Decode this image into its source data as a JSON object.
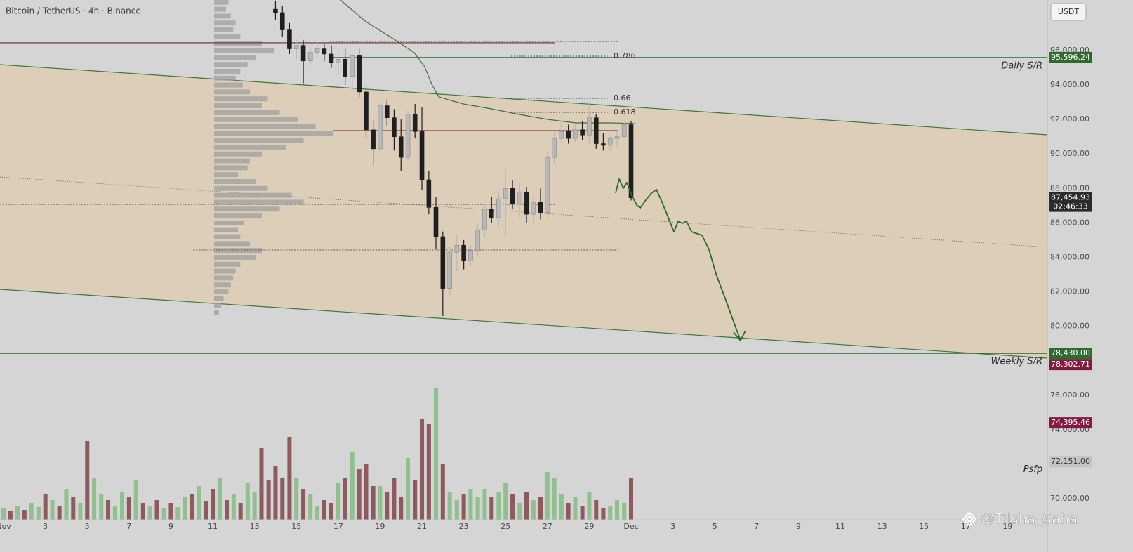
{
  "chart_data": {
    "type": "candlestick",
    "title": "Bitcoin / TetherUS · 4h · Binance",
    "currency_button": "USDT",
    "watermark": "@Trisha_Saha",
    "grid": false,
    "xlim": [
      0.83,
      50.9
    ],
    "xticks": [
      {
        "value": 1,
        "label": "Nov"
      },
      3,
      5,
      7,
      9,
      11,
      13,
      15,
      17,
      19,
      21,
      23,
      25,
      27,
      29,
      {
        "value": 31,
        "label": "Dec"
      },
      {
        "value": 33,
        "label": "3"
      },
      {
        "value": 35,
        "label": "5"
      },
      {
        "value": 37,
        "label": "7"
      },
      {
        "value": 39,
        "label": "9"
      },
      {
        "value": 41,
        "label": "11"
      },
      {
        "value": 43,
        "label": "13"
      },
      {
        "value": 45,
        "label": "15"
      },
      {
        "value": 47,
        "label": "17"
      },
      {
        "value": 49,
        "label": "19"
      }
    ],
    "ylim": [
      68778,
      98934
    ],
    "yticks": [
      {
        "value": 96000,
        "label": "96,000.00"
      },
      {
        "value": 94000,
        "label": "94,000.00"
      },
      {
        "value": 92000,
        "label": "92,000.00"
      },
      {
        "value": 90000,
        "label": "90,000.00"
      },
      {
        "value": 88000,
        "label": "88,000.00"
      },
      {
        "value": 86000,
        "label": "86,000.00"
      },
      {
        "value": 84000,
        "label": "84,000.00"
      },
      {
        "value": 82000,
        "label": "82,000.00"
      },
      {
        "value": 80000,
        "label": "80,000.00"
      },
      {
        "value": 76000,
        "label": "76,000.00"
      },
      {
        "value": 74000,
        "label": "74,000.00"
      },
      {
        "value": 70000,
        "label": "70,000.00"
      }
    ],
    "candles": {
      "up_color": "#b8b8b8",
      "down_color": "#1f1f1f",
      "x": [
        14,
        14.33,
        14.67,
        15,
        15.33,
        15.67,
        16,
        16.33,
        16.67,
        17,
        17.33,
        17.67,
        18,
        18.33,
        18.67,
        19,
        19.33,
        19.67,
        20,
        20.33,
        20.67,
        21,
        21.33,
        21.67,
        22,
        22.33,
        22.67,
        23,
        23.33,
        23.67,
        24,
        24.33,
        24.67,
        25,
        25.33,
        25.67,
        26,
        26.33,
        26.67,
        27,
        27.33,
        27.67,
        28,
        28.33,
        28.67,
        29,
        29.33,
        29.67,
        30,
        30.33,
        30.67,
        31
      ],
      "open": [
        98400,
        98200,
        97200,
        96100,
        96300,
        95400,
        95900,
        96100,
        95800,
        95300,
        95500,
        94500,
        95700,
        93600,
        91400,
        90300,
        92800,
        92100,
        91000,
        89800,
        92300,
        91300,
        88500,
        86900,
        85200,
        82200,
        84300,
        84700,
        83800,
        84400,
        85600,
        86800,
        86300,
        87400,
        88000,
        87100,
        87800,
        86500,
        87200,
        86600,
        89800,
        90900,
        91300,
        90900,
        91400,
        91100,
        92100,
        90600,
        90500,
        90900,
        91000,
        91700
      ],
      "high": [
        98900,
        98600,
        97600,
        96700,
        96600,
        96200,
        96500,
        96400,
        96300,
        96000,
        96100,
        95900,
        96100,
        93900,
        92000,
        93300,
        93100,
        92600,
        92000,
        92500,
        92900,
        92700,
        89000,
        87500,
        85500,
        84600,
        85300,
        85000,
        84700,
        86000,
        87100,
        87500,
        87800,
        89100,
        88500,
        88300,
        88100,
        87500,
        88000,
        90100,
        91300,
        91900,
        91700,
        91700,
        91900,
        93000,
        92300,
        91200,
        91100,
        91300,
        91900,
        91900
      ],
      "low": [
        97800,
        96800,
        95800,
        95500,
        94100,
        95200,
        95600,
        95400,
        95000,
        94600,
        94000,
        93600,
        93300,
        90900,
        89300,
        90100,
        91600,
        90200,
        89000,
        89600,
        90900,
        87900,
        86500,
        84500,
        80600,
        81800,
        83200,
        83300,
        83500,
        84100,
        85200,
        86000,
        85800,
        85200,
        86800,
        86300,
        86000,
        85900,
        86200,
        86300,
        89400,
        90600,
        90600,
        90700,
        90800,
        90500,
        90300,
        90200,
        90200,
        90400,
        90900,
        87300
      ],
      "close": [
        98200,
        97200,
        96100,
        96300,
        95400,
        95900,
        96100,
        95800,
        95300,
        95500,
        94500,
        95700,
        93600,
        91400,
        90300,
        92800,
        92100,
        91000,
        89800,
        92300,
        91300,
        88500,
        86900,
        85200,
        82200,
        84300,
        84700,
        83800,
        84400,
        85600,
        86800,
        86300,
        87400,
        88000,
        87100,
        87800,
        86500,
        87200,
        86600,
        89800,
        90900,
        91300,
        90900,
        91400,
        91100,
        92100,
        90600,
        90500,
        90900,
        91000,
        91700,
        87454.93
      ]
    },
    "volume": {
      "lim": [
        0,
        100
      ],
      "up_color": "#8fc08d",
      "down_color": "#8c5a5f",
      "x": [
        1,
        1.33,
        1.67,
        2,
        2.33,
        2.67,
        3,
        3.33,
        3.67,
        4,
        4.33,
        4.67,
        5,
        5.33,
        5.67,
        6,
        6.33,
        6.67,
        7,
        7.33,
        7.67,
        8,
        8.33,
        8.67,
        9,
        9.33,
        9.67,
        10,
        10.33,
        10.67,
        11,
        11.33,
        11.67,
        12,
        12.33,
        12.67,
        13,
        13.33,
        13.67,
        14,
        14.33,
        14.67,
        15,
        15.33,
        15.67,
        16,
        16.33,
        16.67,
        17,
        17.33,
        17.67,
        18,
        18.33,
        18.67,
        19,
        19.33,
        19.67,
        20,
        20.33,
        20.67,
        21,
        21.33,
        21.67,
        22,
        22.33,
        22.67,
        23,
        23.33,
        23.67,
        24,
        24.33,
        24.67,
        25,
        25.33,
        25.67,
        26,
        26.33,
        26.67,
        27,
        27.33,
        27.67,
        28,
        28.33,
        28.67,
        29,
        29.33,
        29.67,
        30,
        30.33,
        30.67,
        31
      ],
      "values": [
        8,
        6,
        10,
        7,
        12,
        9,
        18,
        14,
        10,
        22,
        16,
        12,
        56,
        30,
        18,
        14,
        10,
        20,
        16,
        28,
        12,
        10,
        14,
        8,
        12,
        9,
        16,
        18,
        24,
        13,
        22,
        30,
        14,
        18,
        12,
        26,
        20,
        51,
        28,
        38,
        30,
        59,
        30,
        22,
        18,
        10,
        14,
        12,
        26,
        30,
        48,
        36,
        40,
        24,
        24,
        20,
        30,
        16,
        44,
        28,
        72,
        68,
        94,
        40,
        20,
        14,
        18,
        22,
        16,
        22,
        16,
        20,
        26,
        18,
        12,
        20,
        14,
        16,
        34,
        30,
        18,
        12,
        16,
        10,
        20,
        14,
        8,
        10,
        14,
        12,
        30
      ],
      "rising": [
        true,
        false,
        true,
        false,
        true,
        true,
        false,
        true,
        false,
        true,
        false,
        true,
        false,
        true,
        true,
        false,
        true,
        true,
        false,
        true,
        false,
        true,
        false,
        true,
        false,
        true,
        true,
        false,
        true,
        false,
        false,
        true,
        false,
        true,
        false,
        true,
        true,
        false,
        false,
        false,
        false,
        false,
        true,
        false,
        true,
        true,
        false,
        false,
        true,
        false,
        true,
        false,
        false,
        false,
        true,
        false,
        false,
        false,
        true,
        false,
        false,
        false,
        true,
        false,
        true,
        true,
        false,
        true,
        true,
        true,
        false,
        true,
        true,
        false,
        true,
        false,
        true,
        false,
        true,
        true,
        true,
        false,
        true,
        false,
        true,
        false,
        false,
        true,
        true,
        true,
        false
      ]
    },
    "volume_profile": {
      "lim": [
        0,
        100
      ],
      "color": "#a3a3a3",
      "prices": [
        98800,
        98400,
        98000,
        97600,
        97200,
        96800,
        96400,
        96000,
        95600,
        95200,
        94800,
        94400,
        94000,
        93600,
        93200,
        92800,
        92400,
        92000,
        91600,
        91200,
        90800,
        90400,
        90000,
        89600,
        89200,
        88800,
        88400,
        88000,
        87600,
        87200,
        86800,
        86400,
        86000,
        85600,
        85200,
        84800,
        84400,
        84000,
        83600,
        83200,
        82800,
        82400,
        82000,
        81600,
        81200,
        80800
      ],
      "values": [
        12,
        10,
        14,
        18,
        16,
        22,
        40,
        50,
        35,
        28,
        22,
        18,
        24,
        30,
        45,
        40,
        55,
        70,
        85,
        100,
        75,
        60,
        40,
        30,
        28,
        20,
        35,
        45,
        65,
        75,
        55,
        40,
        25,
        20,
        22,
        30,
        40,
        35,
        22,
        18,
        16,
        14,
        12,
        8,
        6,
        4
      ]
    },
    "moving_average": {
      "color": "#3f6f3f",
      "x": [
        17.11,
        18.28,
        19.62,
        20.63,
        21.13,
        21.47,
        21.81,
        22.98,
        24.32,
        25.66,
        27.01,
        28.35,
        30.03,
        31.2
      ],
      "values": [
        98934,
        97712,
        96693,
        95878,
        95063,
        94044,
        93311,
        92903,
        92618,
        92292,
        92007,
        91803,
        91803,
        91762
      ]
    },
    "channel": {
      "color": "#3d773d",
      "fill": "#e6c8a0",
      "upper": {
        "x": [
          0.83,
          50.9
        ],
        "values": [
          95185,
          91110
        ]
      },
      "middle": {
        "x": [
          0.83,
          50.9
        ],
        "values": [
          88665,
          84590
        ]
      },
      "lower": {
        "x": [
          0.83,
          50.9
        ],
        "values": [
          82145,
          78152
        ]
      }
    },
    "projection": {
      "color": "#2c6a2c",
      "x": [
        30.26,
        30.43,
        30.63,
        30.8,
        31.03,
        31.27,
        31.44,
        31.7,
        31.97,
        32.21,
        32.44,
        32.71,
        33.05,
        33.25,
        33.45,
        33.65,
        33.89,
        34.39,
        34.72,
        35.06,
        35.56,
        36.23
      ],
      "values": [
        87728,
        88543,
        88013,
        88339,
        87606,
        87035,
        86872,
        87320,
        87728,
        87931,
        87320,
        86505,
        85487,
        86098,
        85976,
        86098,
        85487,
        85283,
        84468,
        83041,
        81411,
        79170
      ]
    },
    "levels": [
      {
        "price": 96450,
        "x": [
          0.83,
          27.34
        ],
        "style": "solid",
        "color": "#6b2a2a"
      },
      {
        "price": 96530,
        "x": [
          16.6,
          30.36
        ],
        "style": "dotted",
        "color": "#444444"
      },
      {
        "price": 95675,
        "x": [
          25.26,
          29.96
        ],
        "style": "dotted",
        "color": "#444444",
        "label": "0.786",
        "label_at": "end"
      },
      {
        "price": 93229,
        "x": [
          25.26,
          29.96
        ],
        "style": "dotted",
        "color": "#444444",
        "label": "0.66",
        "label_at": "end"
      },
      {
        "price": 92414,
        "x": [
          25.26,
          29.96
        ],
        "style": "dotted",
        "color": "#444444",
        "label": "0.618",
        "label_at": "end"
      },
      {
        "price": 91355,
        "x": [
          16.74,
          30.36
        ],
        "style": "solid",
        "color": "#8b3a3a"
      },
      {
        "price": 87076,
        "x": [
          0.83,
          27.34
        ],
        "style": "dotted",
        "color": "#444444"
      },
      {
        "price": 84427,
        "x": [
          10.07,
          30.36
        ],
        "style": "dotted",
        "color": "#555555"
      },
      {
        "price": 95596.24,
        "x": [
          16.6,
          50.9
        ],
        "style": "solid",
        "color": "#2e6b2e",
        "label": "Daily S/R",
        "label_at": "axis"
      },
      {
        "price": 78430,
        "x": [
          0.83,
          50.9
        ],
        "style": "solid",
        "color": "#2e6b2e",
        "label": "Weekly S/R",
        "label_at": "axis"
      }
    ],
    "price_tags": [
      {
        "value": 95596.24,
        "label": "95,596.24",
        "color": "#2e6b2e"
      },
      {
        "value": 87454.93,
        "label": "87,454.93",
        "sub": "02:46:33",
        "color": "#2b2b2b"
      },
      {
        "value": 78430,
        "label": "78,430.00",
        "color": "#2e6b2e"
      },
      {
        "value": 78302.71,
        "label": "78,302.71",
        "color": "#85193f"
      },
      {
        "value": 74395.46,
        "label": "74,395.46",
        "color": "#85193f"
      },
      {
        "value": 72151,
        "label": "72,151.00",
        "color": "#c4c4c4"
      }
    ],
    "annotations": [
      {
        "text": "Psfp",
        "x": 50.67,
        "price": 71700
      }
    ]
  }
}
